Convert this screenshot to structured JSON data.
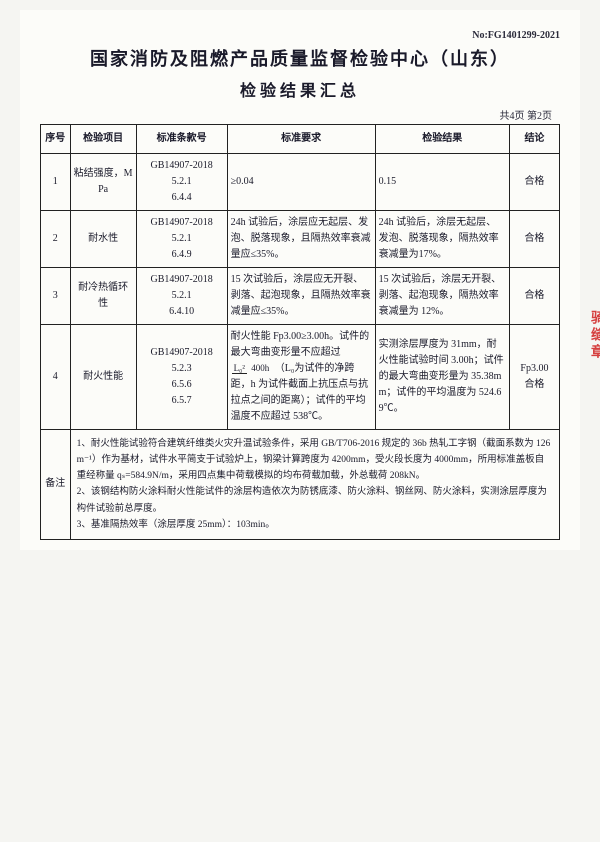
{
  "doc_no": "No:FG1401299-2021",
  "title": "国家消防及阻燃产品质量监督检验中心（山东）",
  "subtitle": "检验结果汇总",
  "page_info": "共4页 第2页",
  "headers": {
    "no": "序号",
    "item": "检验项目",
    "std": "标准条款号",
    "req": "标准要求",
    "res": "检验结果",
    "con": "结论"
  },
  "rows": [
    {
      "no": "1",
      "item": "粘结强度，MPa",
      "std": "GB14907-2018\n5.2.1\n6.4.4",
      "req": "≥0.04",
      "res": "0.15",
      "con": "合格"
    },
    {
      "no": "2",
      "item": "耐水性",
      "std": "GB14907-2018\n5.2.1\n6.4.9",
      "req": "24h 试验后，涂层应无起层、发泡、脱落现象，且隔热效率衰减量应≤35%。",
      "res": "24h 试验后，涂层无起层、发泡、脱落现象，隔热效率衰减量为17%。",
      "con": "合格"
    },
    {
      "no": "3",
      "item": "耐冷热循环性",
      "std": "GB14907-2018\n5.2.1\n6.4.10",
      "req": "15 次试验后，涂层应无开裂、剥落、起泡现象，且隔热效率衰减量应≤35%。",
      "res": "15 次试验后，涂层无开裂、剥落、起泡现象，隔热效率衰减量为 12%。",
      "con": "合格"
    },
    {
      "no": "4",
      "item": "耐火性能",
      "std": "GB14907-2018\n5.2.3\n6.5.6\n6.5.7",
      "req_pre": "耐火性能 Fp3.00≥3.00h。试件的最大弯曲变形量不应超过",
      "req_frac_top": "L₀²",
      "req_frac_bot": "400h",
      "req_post": "（L₀为试件的净跨距，h 为试件截面上抗压点与抗拉点之间的距离）；试件的平均温度不应超过 538℃。",
      "res": "实测涂层厚度为 31mm，耐火性能试验时间 3.00h；试件的最大弯曲变形量为 35.38mm；试件的平均温度为 524.69℃。",
      "con": "Fp3.00\n合格"
    }
  ],
  "notes_label": "备注",
  "notes": "1、耐火性能试验符合建筑纤维类火灾升温试验条件，采用 GB/T706-2016 规定的 36b 热轧工字钢（截面系数为 126m⁻¹）作为基材，试件水平简支于试验炉上，钢梁计算跨度为 4200mm，受火段长度为 4000mm，所用标准盖板自重经称量 qₛ=584.9N/m，采用四点集中荷载模拟的均布荷载加载，外总载荷 208kN。\n2、该钢结构防火涂料耐火性能试件的涂层构造依次为防锈底漆、防火涂料、钢丝网、防火涂料，实测涂层厚度为构件试验前总厚度。\n3、基准隔热效率（涂层厚度 25mm）：103min。",
  "colors": {
    "text": "#1a1a2a",
    "border": "#222222",
    "bg": "#fcfcf9",
    "stamp": "#d02020"
  },
  "stamp_text": "骑缝章"
}
